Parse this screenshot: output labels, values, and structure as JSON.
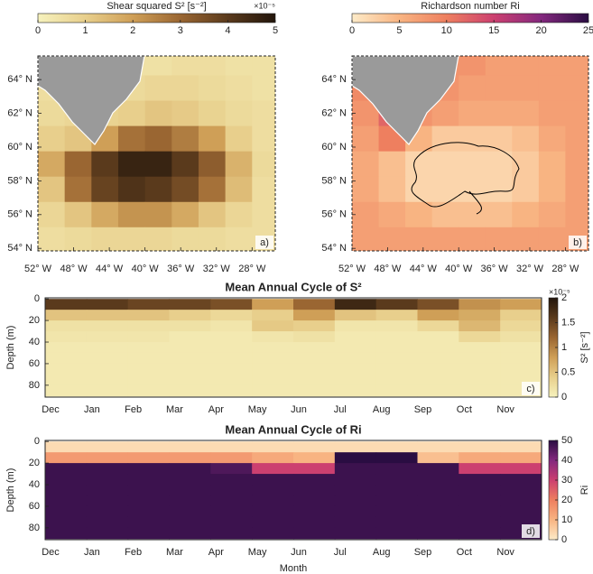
{
  "chart_data": [
    {
      "type": "map",
      "colorbar_label": "Shear squared S² [s⁻²]",
      "colorbar_multiplier": "×10⁻⁵",
      "panel_label": "a)",
      "clim": [
        0,
        5
      ],
      "cticks": [
        0,
        1,
        2,
        3,
        4,
        5
      ],
      "colormap": [
        "#f6f2bd",
        "#e8cf8c",
        "#cf9f57",
        "#9a6632",
        "#5a3a1c",
        "#22150b"
      ],
      "land_color": "#9a9a9a",
      "lon": [
        -50.5,
        -47.5,
        -44.5,
        -41.5,
        -38.5,
        -35.5,
        -32.5,
        -29.5,
        -26.5
      ],
      "lat": [
        65,
        63.5,
        62,
        60.5,
        59,
        57.5,
        56,
        54.5
      ],
      "values": [
        [
          0.5,
          0.5,
          0.5,
          0.5,
          0.5,
          0.6,
          0.6,
          0.5,
          0.5
        ],
        [
          0.6,
          0.6,
          0.6,
          0.7,
          0.8,
          0.8,
          0.7,
          0.6,
          0.5
        ],
        [
          0.7,
          0.8,
          0.9,
          1.0,
          1.2,
          1.1,
          0.9,
          0.7,
          0.6
        ],
        [
          1.0,
          1.2,
          2.0,
          2.8,
          3.0,
          2.6,
          2.0,
          1.0,
          0.6
        ],
        [
          1.8,
          3.0,
          4.0,
          4.6,
          4.6,
          4.0,
          3.2,
          1.6,
          0.7
        ],
        [
          1.2,
          2.8,
          3.8,
          4.2,
          4.0,
          3.6,
          2.8,
          1.4,
          0.6
        ],
        [
          0.8,
          1.2,
          1.8,
          2.2,
          2.2,
          1.8,
          1.2,
          0.8,
          0.6
        ],
        [
          0.6,
          0.7,
          0.8,
          0.8,
          0.8,
          0.7,
          0.7,
          0.6,
          0.6
        ]
      ],
      "xlim": [
        -52,
        -25.4
      ],
      "ylim": [
        53.85,
        65.4
      ],
      "xticks": [
        {
          "value": -52,
          "label": "52° W"
        },
        {
          "value": -48,
          "label": "48° W"
        },
        {
          "value": -44,
          "label": "44° W"
        },
        {
          "value": -40,
          "label": "40° W"
        },
        {
          "value": -36,
          "label": "36° W"
        },
        {
          "value": -32,
          "label": "32° W"
        },
        {
          "value": -28,
          "label": "28° W"
        }
      ],
      "yticks": [
        {
          "value": 64,
          "label": "64° N"
        },
        {
          "value": 62,
          "label": "62° N"
        },
        {
          "value": 60,
          "label": "60° N"
        },
        {
          "value": 58,
          "label": "58° N"
        },
        {
          "value": 56,
          "label": "56° N"
        },
        {
          "value": 54,
          "label": "54° N"
        }
      ]
    },
    {
      "type": "map",
      "colorbar_label": "Richardson number Ri",
      "panel_label": "b)",
      "clim": [
        0,
        25
      ],
      "cticks": [
        0,
        5,
        10,
        15,
        20,
        25
      ],
      "colormap": [
        "#fdebc8",
        "#f8b482",
        "#ee7f5f",
        "#cc4070",
        "#83287e",
        "#2a0d42"
      ],
      "land_color": "#9a9a9a",
      "lon": [
        -50.5,
        -47.5,
        -44.5,
        -41.5,
        -38.5,
        -35.5,
        -32.5,
        -29.5,
        -26.5
      ],
      "lat": [
        65,
        63.5,
        62,
        60.5,
        59,
        57.5,
        56,
        54.5
      ],
      "values": [
        [
          8,
          8,
          8,
          8,
          8,
          7,
          7,
          7,
          7
        ],
        [
          9,
          9,
          8,
          8,
          7,
          7,
          7,
          7,
          7
        ],
        [
          8,
          12,
          8,
          7,
          6,
          6,
          6,
          7,
          7
        ],
        [
          7,
          10,
          5,
          3,
          3,
          3,
          4,
          6,
          7
        ],
        [
          6,
          4,
          2,
          2,
          2,
          2,
          3,
          5,
          7
        ],
        [
          6,
          4,
          2,
          2,
          2,
          2,
          3,
          5,
          7
        ],
        [
          7,
          6,
          5,
          4,
          4,
          4,
          5,
          6,
          7
        ],
        [
          7,
          7,
          7,
          7,
          7,
          7,
          7,
          7,
          7
        ]
      ],
      "xlim": [
        -52,
        -25.4
      ],
      "ylim": [
        53.85,
        65.4
      ],
      "xticks": [
        {
          "value": -52,
          "label": "52° W"
        },
        {
          "value": -48,
          "label": "48° W"
        },
        {
          "value": -44,
          "label": "44° W"
        },
        {
          "value": -40,
          "label": "40° W"
        },
        {
          "value": -36,
          "label": "36° W"
        },
        {
          "value": -32,
          "label": "32° W"
        },
        {
          "value": -28,
          "label": "28° W"
        }
      ],
      "yticks": [
        {
          "value": 64,
          "label": "64° N"
        },
        {
          "value": 62,
          "label": "62° N"
        },
        {
          "value": 60,
          "label": "60° N"
        },
        {
          "value": 58,
          "label": "58° N"
        },
        {
          "value": 56,
          "label": "56° N"
        },
        {
          "value": 54,
          "label": "54° N"
        }
      ]
    },
    {
      "type": "heatmap",
      "title": "Mean Annual Cycle of S²",
      "ylabel": "Depth (m)",
      "panel_label": "c)",
      "colorbar_label": "S² [s⁻²]",
      "colorbar_multiplier": "×10⁻⁵",
      "clim": [
        0,
        2
      ],
      "cticks": [
        0,
        0.5,
        1,
        1.5,
        2
      ],
      "colormap": [
        "#f6f2bd",
        "#e8cf8c",
        "#cf9f57",
        "#9a6632",
        "#5a3a1c",
        "#22150b"
      ],
      "categories": [
        "Dec",
        "Jan",
        "Feb",
        "Mar",
        "Apr",
        "May",
        "Jun",
        "Jul",
        "Aug",
        "Sep",
        "Oct",
        "Nov"
      ],
      "depths": [
        5,
        15,
        25,
        35,
        45,
        55,
        65,
        75,
        85
      ],
      "values": [
        [
          1.6,
          1.6,
          1.5,
          1.5,
          1.4,
          0.8,
          1.2,
          1.8,
          1.6,
          1.4,
          0.9,
          0.8
        ],
        [
          0.5,
          0.5,
          0.5,
          0.4,
          0.3,
          0.4,
          0.8,
          0.5,
          0.4,
          0.8,
          0.7,
          0.4
        ],
        [
          0.2,
          0.2,
          0.2,
          0.2,
          0.15,
          0.45,
          0.4,
          0.15,
          0.15,
          0.3,
          0.6,
          0.3
        ],
        [
          0.15,
          0.15,
          0.15,
          0.1,
          0.1,
          0.15,
          0.2,
          0.1,
          0.1,
          0.1,
          0.3,
          0.2
        ],
        [
          0.1,
          0.1,
          0.1,
          0.1,
          0.1,
          0.1,
          0.1,
          0.1,
          0.1,
          0.1,
          0.1,
          0.1
        ],
        [
          0.1,
          0.1,
          0.1,
          0.1,
          0.1,
          0.1,
          0.1,
          0.1,
          0.1,
          0.1,
          0.1,
          0.1
        ],
        [
          0.1,
          0.1,
          0.1,
          0.1,
          0.1,
          0.1,
          0.1,
          0.1,
          0.1,
          0.1,
          0.1,
          0.1
        ],
        [
          0.1,
          0.1,
          0.1,
          0.1,
          0.1,
          0.1,
          0.1,
          0.1,
          0.1,
          0.1,
          0.1,
          0.1
        ],
        [
          0.1,
          0.1,
          0.1,
          0.1,
          0.1,
          0.1,
          0.1,
          0.1,
          0.1,
          0.1,
          0.1,
          0.1
        ]
      ],
      "ylim": [
        -1,
        91
      ],
      "y_inverted": true,
      "yticks": [
        0,
        20,
        40,
        60,
        80
      ]
    },
    {
      "type": "heatmap",
      "title": "Mean Annual Cycle of Ri",
      "ylabel": "Depth (m)",
      "xlabel": "Month",
      "panel_label": "d)",
      "colorbar_label": "Ri",
      "clim": [
        0,
        50
      ],
      "cticks": [
        0,
        10,
        20,
        30,
        40,
        50
      ],
      "colormap": [
        "#fdebc8",
        "#f8b482",
        "#ee7f5f",
        "#cc4070",
        "#83287e",
        "#2a0d42"
      ],
      "categories": [
        "Dec",
        "Jan",
        "Feb",
        "Mar",
        "Apr",
        "May",
        "Jun",
        "Jul",
        "Aug",
        "Sep",
        "Oct",
        "Nov"
      ],
      "depths": [
        5,
        15,
        25,
        35,
        45,
        55,
        65,
        75,
        85
      ],
      "values": [
        [
          3,
          3,
          3,
          3,
          3,
          3,
          3,
          3,
          3,
          3,
          3,
          3
        ],
        [
          15,
          15,
          15,
          15,
          15,
          12,
          10,
          50,
          50,
          8,
          12,
          12
        ],
        [
          48,
          48,
          48,
          48,
          46,
          30,
          30,
          48,
          48,
          48,
          30,
          30
        ],
        [
          48,
          48,
          48,
          48,
          48,
          48,
          48,
          48,
          48,
          48,
          48,
          48
        ],
        [
          48,
          48,
          48,
          48,
          48,
          48,
          48,
          48,
          48,
          48,
          48,
          48
        ],
        [
          48,
          48,
          48,
          48,
          48,
          48,
          48,
          48,
          48,
          48,
          48,
          48
        ],
        [
          48,
          48,
          48,
          48,
          48,
          48,
          48,
          48,
          48,
          48,
          48,
          48
        ],
        [
          48,
          48,
          48,
          48,
          48,
          48,
          48,
          48,
          48,
          48,
          48,
          48
        ],
        [
          48,
          48,
          48,
          48,
          48,
          48,
          48,
          48,
          48,
          48,
          48,
          48
        ]
      ],
      "ylim": [
        -1,
        91
      ],
      "y_inverted": true,
      "yticks": [
        0,
        20,
        40,
        60,
        80
      ]
    }
  ]
}
